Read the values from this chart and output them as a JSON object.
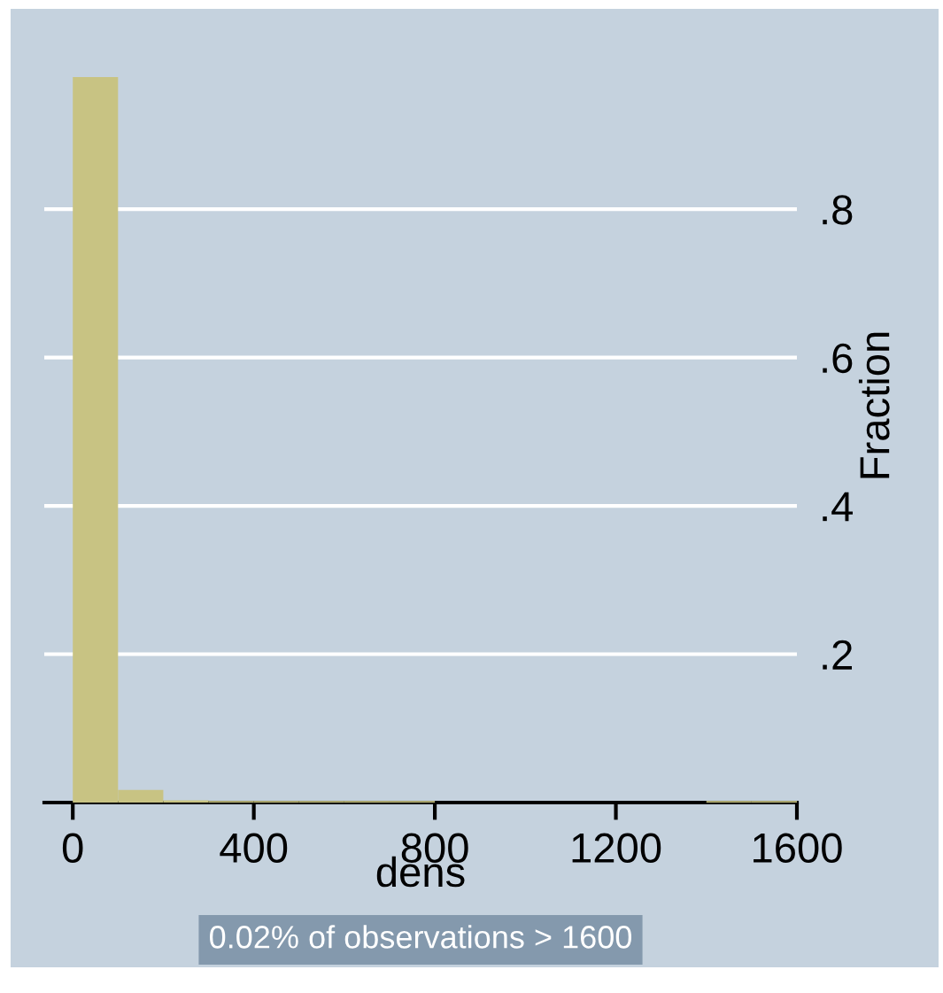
{
  "chart_data": {
    "type": "histogram",
    "xlabel": "dens",
    "ylabel": "Fraction",
    "bins": [
      0,
      100,
      200,
      300,
      400,
      500,
      600,
      700,
      800,
      900,
      1000,
      1100,
      1200,
      1300,
      1400,
      1500,
      1600
    ],
    "values": [
      0.978,
      0.017,
      0.003,
      0.002,
      0.002,
      0.002,
      0.002,
      0.002,
      0,
      0,
      0,
      0,
      0,
      0,
      0.002,
      0.002
    ],
    "color": "#c8c383",
    "xlim": [
      -63,
      1600
    ],
    "ylim": [
      0,
      1.07
    ],
    "xticks": [
      0,
      400,
      800,
      1200,
      1600
    ],
    "yticks": [
      {
        "value": 0.2,
        "label": ".2"
      },
      {
        "value": 0.4,
        "label": ".4"
      },
      {
        "value": 0.6,
        "label": ".6"
      },
      {
        "value": 0.8,
        "label": ".8"
      }
    ],
    "grid": "y",
    "annotations": [
      "0.02% of observations > 1600"
    ]
  }
}
